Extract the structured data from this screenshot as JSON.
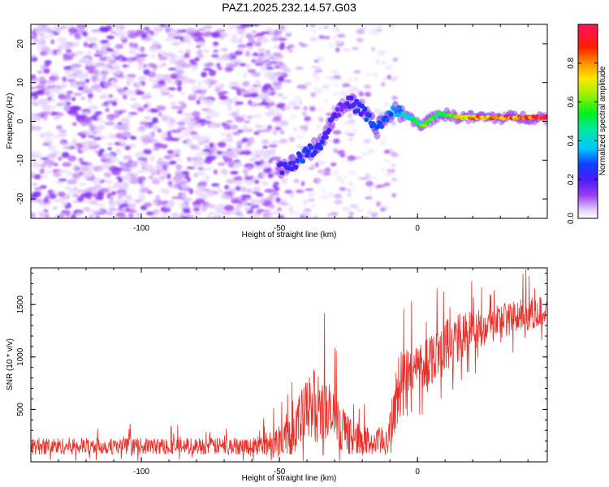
{
  "title": "PAZ1.2025.232.14.57.G03",
  "chart_data": [
    {
      "type": "heatmap",
      "xlabel": "Height of straight line (km)",
      "ylabel": "Frequency (Hz)",
      "xlim": [
        -140,
        47
      ],
      "ylim": [
        -25,
        25
      ],
      "xticks": [
        -100,
        -50,
        0
      ],
      "yticks": [
        -20,
        -10,
        0,
        10,
        20
      ],
      "xticklabels": [
        "-100",
        "-50",
        "0"
      ],
      "yticklabels": [
        "-20",
        "-10",
        "0",
        "10",
        "20"
      ],
      "colorbar": {
        "label": "Normalized spectral amplitude",
        "range": [
          0,
          1
        ],
        "ticks": [
          0.0,
          0.2,
          0.4,
          0.6,
          0.8
        ],
        "ticklabels": [
          "0.0",
          "0.2",
          "0.4",
          "0.6",
          "0.8"
        ],
        "colormap": "hsv-reversed (white-violet-blue-cyan-green-yellow-orange-red-magenta)"
      },
      "description_regions": {
        "noise_region_x": [
          -140,
          -48
        ],
        "signal_ridge": [
          {
            "x": -50,
            "y": -12,
            "amp": 0.2
          },
          {
            "x": -45,
            "y": -11,
            "amp": 0.25
          },
          {
            "x": -40,
            "y": -8,
            "amp": 0.3
          },
          {
            "x": -35,
            "y": -6,
            "amp": 0.25
          },
          {
            "x": -30,
            "y": 2,
            "amp": 0.2
          },
          {
            "x": -25,
            "y": 5,
            "amp": 0.2
          },
          {
            "x": -20,
            "y": 3,
            "amp": 0.25
          },
          {
            "x": -15,
            "y": -2,
            "amp": 0.3
          },
          {
            "x": -8,
            "y": 3,
            "amp": 0.35
          },
          {
            "x": -3,
            "y": 1,
            "amp": 0.45
          },
          {
            "x": 2,
            "y": -1,
            "amp": 0.6
          },
          {
            "x": 8,
            "y": 2,
            "amp": 0.55
          },
          {
            "x": 15,
            "y": 1,
            "amp": 0.75
          },
          {
            "x": 25,
            "y": 1,
            "amp": 0.85
          },
          {
            "x": 35,
            "y": 1,
            "amp": 0.9
          },
          {
            "x": 47,
            "y": 1,
            "amp": 0.95
          }
        ]
      }
    },
    {
      "type": "line",
      "xlabel": "Height of straight line (km)",
      "ylabel": "SNR (10 * v/v)",
      "xlim": [
        -140,
        47
      ],
      "ylim": [
        0,
        1850
      ],
      "xticks": [
        -100,
        -50,
        0
      ],
      "yticks": [
        500,
        1000,
        1500
      ],
      "xticklabels": [
        "-100",
        "-50",
        "0"
      ],
      "yticklabels": [
        "500",
        "1000",
        "1500"
      ],
      "color": "#e8302a",
      "envelope": [
        {
          "x": -140,
          "base": 150,
          "amp": 120
        },
        {
          "x": -100,
          "base": 150,
          "amp": 110
        },
        {
          "x": -60,
          "base": 150,
          "amp": 120
        },
        {
          "x": -52,
          "base": 180,
          "amp": 200
        },
        {
          "x": -45,
          "base": 300,
          "amp": 350
        },
        {
          "x": -38,
          "base": 550,
          "amp": 500
        },
        {
          "x": -32,
          "base": 450,
          "amp": 450
        },
        {
          "x": -25,
          "base": 250,
          "amp": 250
        },
        {
          "x": -15,
          "base": 170,
          "amp": 180
        },
        {
          "x": -10,
          "base": 250,
          "amp": 300
        },
        {
          "x": -7,
          "base": 700,
          "amp": 500
        },
        {
          "x": 0,
          "base": 900,
          "amp": 350
        },
        {
          "x": 10,
          "base": 1100,
          "amp": 400
        },
        {
          "x": 20,
          "base": 1250,
          "amp": 300
        },
        {
          "x": 30,
          "base": 1350,
          "amp": 250
        },
        {
          "x": 47,
          "base": 1450,
          "amp": 200
        }
      ]
    }
  ]
}
